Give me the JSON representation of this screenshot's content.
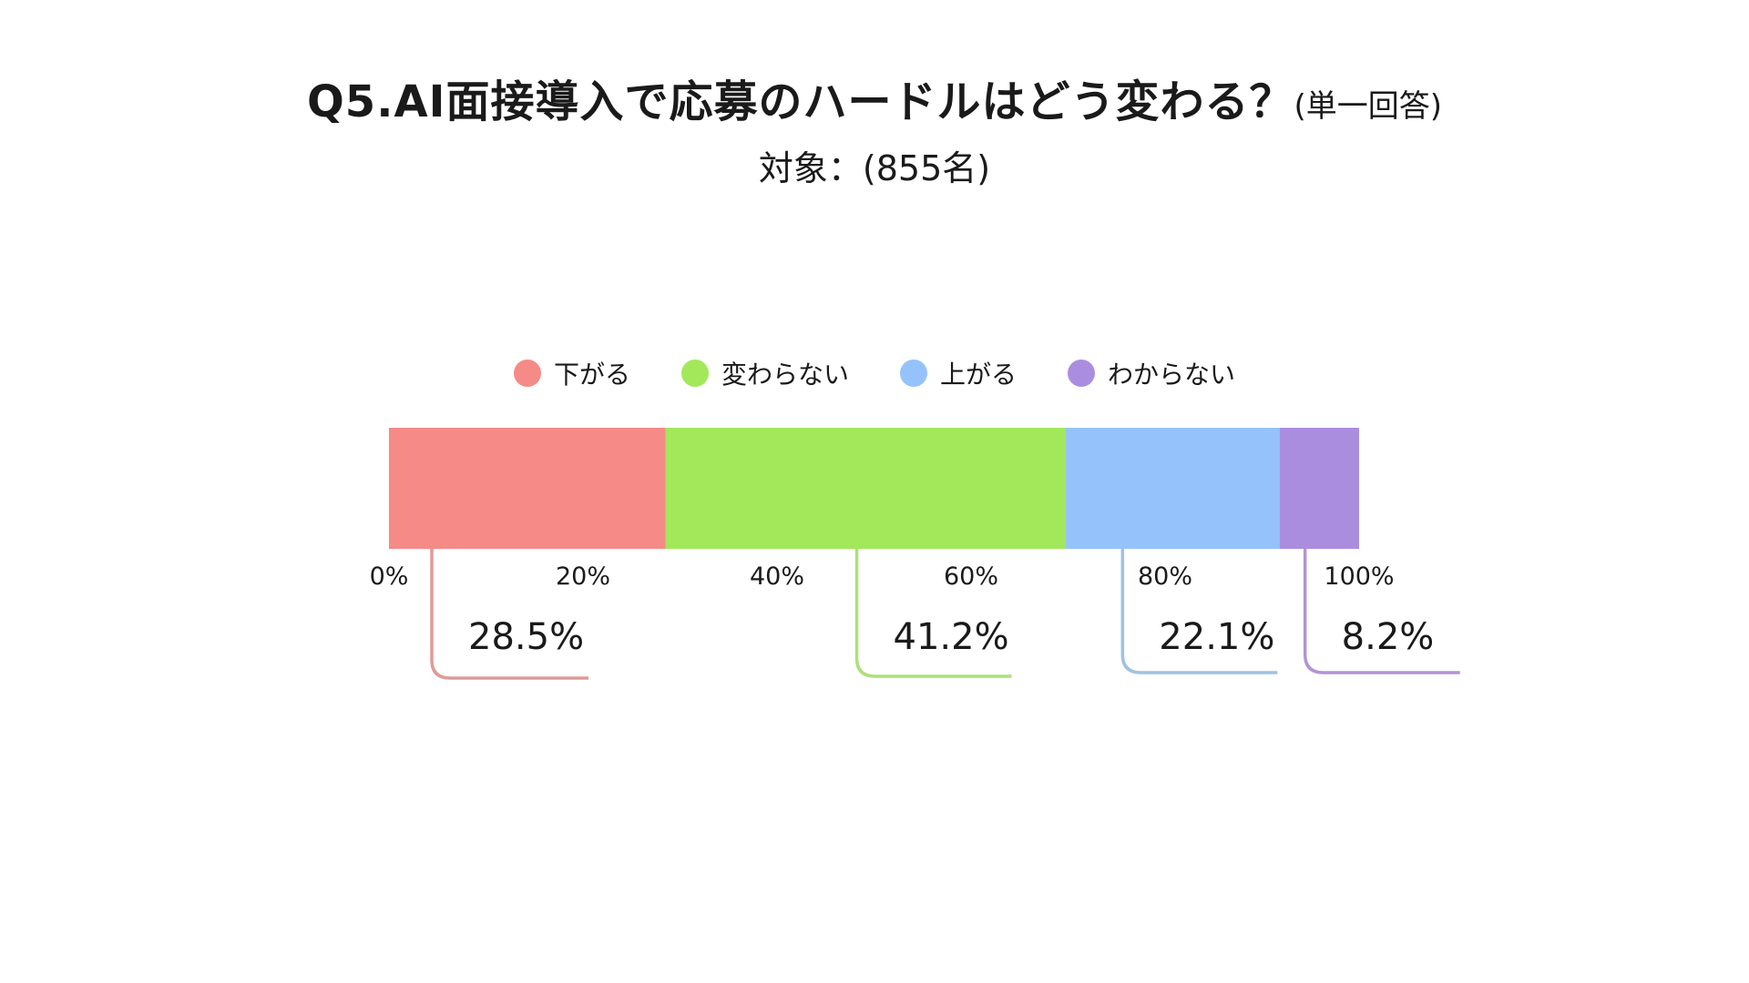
{
  "title": {
    "main": "Q5.AI面接導入で応募のハードルはどう変わる？",
    "sub": "(単一回答)"
  },
  "subtitle": "対象：(855名)",
  "chart_data": {
    "type": "bar",
    "orientation": "horizontal-stacked",
    "categories": [
      "下がる",
      "変わらない",
      "上がる",
      "わからない"
    ],
    "values": [
      28.5,
      41.2,
      22.1,
      8.2
    ],
    "value_labels": [
      "28.5%",
      "41.2%",
      "22.1%",
      "8.2%"
    ],
    "colors": [
      "#f58a87",
      "#a2e85a",
      "#96c2fb",
      "#ab8de0"
    ],
    "callout_colors": [
      "#e09a98",
      "#aee07a",
      "#9ec2e4",
      "#b294d6"
    ],
    "xlim": [
      0,
      100
    ],
    "ticks": [
      0,
      20,
      40,
      60,
      80,
      100
    ],
    "tick_labels": [
      "0%",
      "20%",
      "40%",
      "60%",
      "80%",
      "100%"
    ],
    "legend_position": "top",
    "grid": false
  }
}
